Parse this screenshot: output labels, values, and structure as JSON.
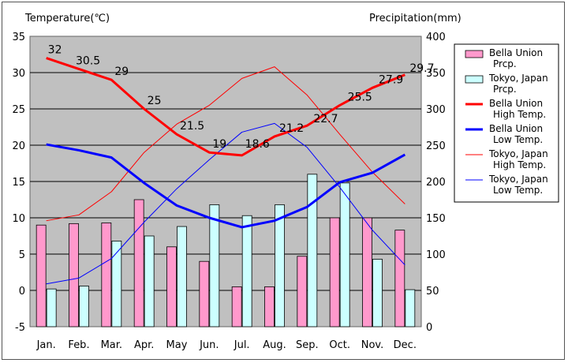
{
  "chart_data": {
    "type": "bar+line",
    "left_axis": {
      "title": "Temperature(℃)",
      "min": -5,
      "max": 35,
      "step": 5,
      "ticks": [
        "-5",
        "0",
        "5",
        "10",
        "15",
        "20",
        "25",
        "30",
        "35"
      ]
    },
    "right_axis": {
      "title": "Precipitation(mm)",
      "min": 0,
      "max": 400,
      "step": 50,
      "ticks": [
        "0",
        "50",
        "100",
        "150",
        "200",
        "250",
        "300",
        "350",
        "400"
      ]
    },
    "categories": [
      "Jan.",
      "Feb.",
      "Mar.",
      "Apr.",
      "May",
      "Jun.",
      "Jul.",
      "Aug.",
      "Sep.",
      "Oct.",
      "Nov.",
      "Dec."
    ],
    "bars": [
      {
        "name": "Bella Union Prcp.",
        "color": "#ff99cc",
        "values": [
          140,
          142,
          143,
          175,
          110,
          90,
          55,
          55,
          97,
          150,
          150,
          133
        ]
      },
      {
        "name": "Tokyo, Japan Prcp.",
        "color": "#ccffff",
        "values": [
          52,
          56,
          118,
          125,
          138,
          168,
          153,
          168,
          210,
          198,
          93,
          51
        ]
      }
    ],
    "lines": [
      {
        "name": "Bella Union High Temp.",
        "color": "#ff0000",
        "width": 3,
        "axis": "left",
        "values": [
          32,
          30.5,
          29,
          25,
          21.5,
          19,
          18.6,
          21.2,
          22.7,
          25.5,
          27.9,
          29.7
        ],
        "labels": [
          "32",
          "30.5",
          "29",
          "25",
          "21.5",
          "19",
          "18.6",
          "21.2",
          "22.7",
          "25.5",
          "27.9",
          "29.7"
        ]
      },
      {
        "name": "Bella Union Low Temp.",
        "color": "#0000ff",
        "width": 3,
        "axis": "left",
        "values": [
          20.1,
          19.3,
          18.3,
          14.8,
          11.7,
          10.0,
          8.7,
          9.6,
          11.5,
          14.9,
          16.2,
          18.7
        ]
      },
      {
        "name": "Tokyo, Japan High Temp.",
        "color": "#ff0000",
        "width": 1,
        "axis": "left",
        "values": [
          9.6,
          10.4,
          13.6,
          19.0,
          22.9,
          25.5,
          29.2,
          30.8,
          26.9,
          21.5,
          16.3,
          11.9
        ]
      },
      {
        "name": "Tokyo, Japan Low Temp.",
        "color": "#0000ff",
        "width": 1,
        "axis": "left",
        "values": [
          0.9,
          1.7,
          4.4,
          9.4,
          14.0,
          18.0,
          21.8,
          23.0,
          19.7,
          14.2,
          8.3,
          3.5
        ]
      }
    ],
    "legend": [
      {
        "kind": "bar",
        "color": "#ff99cc",
        "line1": "Bella Union",
        "line2": "Prcp."
      },
      {
        "kind": "bar",
        "color": "#ccffff",
        "line1": "Tokyo, Japan",
        "line2": "Prcp."
      },
      {
        "kind": "line",
        "color": "#ff0000",
        "width": 3,
        "line1": "Bella Union",
        "line2": "High Temp."
      },
      {
        "kind": "line",
        "color": "#0000ff",
        "width": 3,
        "line1": "Bella Union",
        "line2": "Low Temp."
      },
      {
        "kind": "line",
        "color": "#ff0000",
        "width": 1,
        "line1": "Tokyo, Japan",
        "line2": "High Temp."
      },
      {
        "kind": "line",
        "color": "#0000ff",
        "width": 1,
        "line1": "Tokyo, Japan",
        "line2": "Low Temp."
      }
    ],
    "plot_background": "#c0c0c0",
    "grid": true,
    "legend_position": "right"
  }
}
